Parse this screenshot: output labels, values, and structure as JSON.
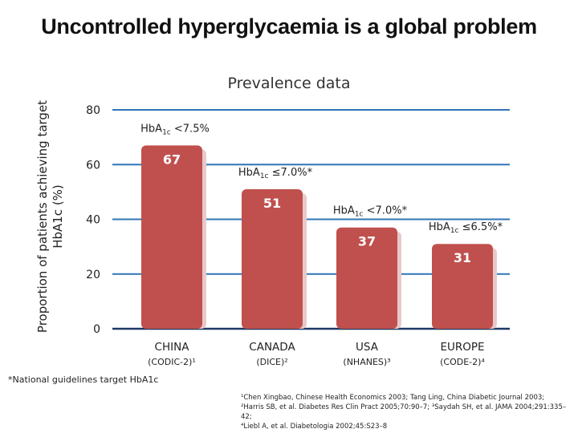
{
  "title": "Uncontrolled hyperglycaemia is a global problem",
  "subtitle": "Prevalence data",
  "footnote": "*National guidelines target HbA1c",
  "references": [
    "¹Chen Xingbao, Chinese Health Economics 2003; Tang Ling, China Diabetic Journal 2003;",
    "²Harris SB, et al. Diabetes Res Clin Pract 2005;70:90–7; ³Saydah SH, et al. JAMA 2004;291:335–42;",
    "⁴Liebl A, et al. Diabetologia 2002;45:S23–8"
  ],
  "colors": {
    "bar": "#c0504d",
    "bar_shadow": "#e8c9c8",
    "grid": "#2e75b6",
    "axis": "#1f3864",
    "text": "#222222"
  },
  "chart_data": {
    "type": "bar",
    "title": "Prevalence data",
    "ylabel": "Proportion of patients achieving target HbA1c (%)",
    "xlabel": "",
    "ylim": [
      0,
      80
    ],
    "yticks": [
      0,
      20,
      40,
      60,
      80
    ],
    "grid": true,
    "categories": [
      "CHINA",
      "CANADA",
      "USA",
      "EUROPE"
    ],
    "subcategories": [
      "(CODIC-2)¹",
      "(DICE)²",
      "(NHANES)³",
      "(CODE-2)⁴"
    ],
    "values": [
      67,
      51,
      37,
      31
    ],
    "targets": [
      "HbA1c <7.5%",
      "HbA1c ≤7.0%*",
      "HbA1c <7.0%*",
      "HbA1c ≤6.5%*"
    ]
  }
}
